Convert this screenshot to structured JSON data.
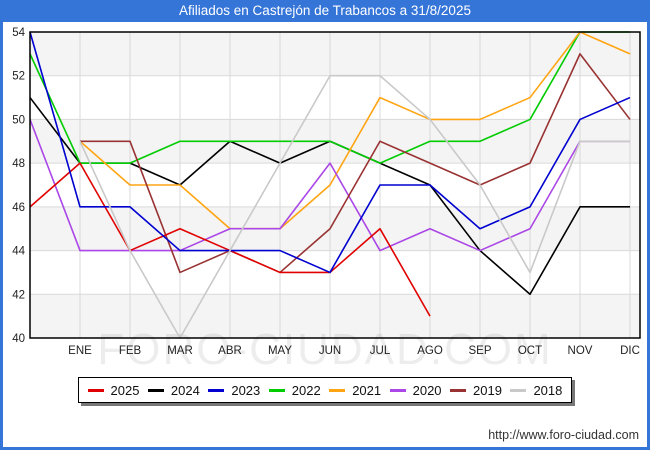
{
  "window": {
    "title": "Afiliados en Castrejón de Trabancos a 31/8/2025",
    "title_bar_color": "#3575d8"
  },
  "chart_data": {
    "type": "line",
    "title": "Afiliados en Castrejón de Trabancos a 31/8/2025",
    "x_tick_labels": [
      "ENE",
      "FEB",
      "MAR",
      "ABR",
      "MAY",
      "JUN",
      "JUL",
      "AGO",
      "SEP",
      "OCT",
      "NOV",
      "DIC"
    ],
    "y_ticks": [
      54,
      52,
      50,
      48,
      46,
      44,
      42,
      40
    ],
    "ylim": [
      40,
      54
    ],
    "grid": true,
    "legend_position": "bottom",
    "series": [
      {
        "name": "2025",
        "color": "#e00000",
        "prev_dec": 46,
        "values": [
          48,
          44,
          45,
          44,
          43,
          43,
          45,
          41,
          null,
          null,
          null,
          null
        ]
      },
      {
        "name": "2024",
        "color": "#000000",
        "prev_dec": 51,
        "values": [
          48,
          48,
          47,
          49,
          48,
          49,
          48,
          47,
          44,
          42,
          46,
          46
        ]
      },
      {
        "name": "2023",
        "color": "#0000d0",
        "prev_dec": 54,
        "values": [
          46,
          46,
          44,
          44,
          44,
          43,
          47,
          47,
          45,
          46,
          50,
          51
        ]
      },
      {
        "name": "2022",
        "color": "#00cc00",
        "prev_dec": 53,
        "values": [
          48,
          48,
          49,
          49,
          49,
          49,
          48,
          49,
          49,
          50,
          54,
          54
        ]
      },
      {
        "name": "2021",
        "color": "#ffa513",
        "prev_dec": null,
        "values": [
          49,
          47,
          47,
          45,
          45,
          47,
          51,
          50,
          50,
          51,
          54,
          53
        ]
      },
      {
        "name": "2020",
        "color": "#ab47e6",
        "prev_dec": 50,
        "values": [
          44,
          44,
          44,
          45,
          45,
          48,
          44,
          45,
          44,
          45,
          49,
          49
        ]
      },
      {
        "name": "2019",
        "color": "#993333",
        "prev_dec": null,
        "values": [
          49,
          49,
          43,
          44,
          43,
          45,
          49,
          48,
          47,
          48,
          53,
          50
        ]
      },
      {
        "name": "2018",
        "color": "#c9c9c9",
        "prev_dec": null,
        "values": [
          49,
          44,
          40,
          44,
          48,
          52,
          52,
          50,
          47,
          43,
          49,
          49
        ]
      }
    ],
    "draw_order": [
      "2024",
      "2022",
      "2021",
      "2020",
      "2019",
      "2025",
      "2023",
      "2018"
    ],
    "band_fill": "#f4f4f4",
    "gridline_color": "#d9d9d9"
  },
  "watermark": "FORO-CIUDAD.COM",
  "footer": {
    "url": "http://www.foro-ciudad.com"
  }
}
